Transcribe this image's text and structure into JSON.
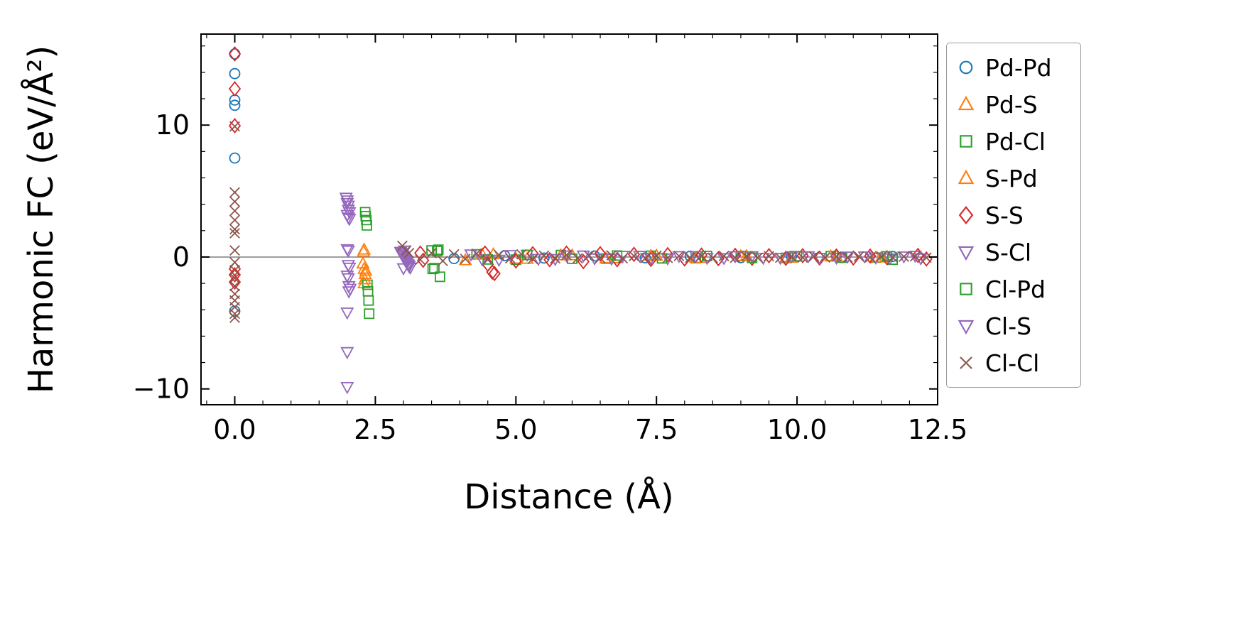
{
  "figure": {
    "background": "#ffffff"
  },
  "chart_data": {
    "type": "scatter",
    "title": "",
    "xlabel": "Distance (Å)",
    "ylabel": "Harmonic FC (eV/Å²)",
    "xlim": [
      -0.6,
      12.5
    ],
    "ylim": [
      -11.2,
      16.9
    ],
    "x_ticks": [
      0.0,
      2.5,
      5.0,
      7.5,
      10.0,
      12.5
    ],
    "x_tick_labels": [
      "0.0",
      "2.5",
      "5.0",
      "7.5",
      "10.0",
      "12.5"
    ],
    "y_ticks": [
      -10,
      0,
      10
    ],
    "y_tick_labels": [
      "−10",
      "0",
      "10"
    ],
    "x_minor_step": 0.5,
    "y_minor_step": 2,
    "grid": false,
    "legend_position": "right-outside",
    "zero_line": {
      "y": 0,
      "color": "#7f7f7f"
    },
    "series": [
      {
        "name": "Pd-Pd",
        "marker": "circle",
        "color": "#1f77b4",
        "points": [
          [
            0,
            15.4
          ],
          [
            0,
            13.9
          ],
          [
            0,
            11.9
          ],
          [
            0,
            11.5
          ],
          [
            0,
            7.5
          ],
          [
            0,
            -4.1
          ],
          [
            3.9,
            -0.12
          ],
          [
            4.8,
            0.1
          ],
          [
            5.5,
            -0.08
          ],
          [
            6.4,
            0.08
          ],
          [
            7.3,
            -0.06
          ],
          [
            8.1,
            0.06
          ],
          [
            9.0,
            -0.05
          ],
          [
            9.9,
            0.05
          ],
          [
            10.8,
            -0.04
          ],
          [
            11.7,
            0.04
          ]
        ]
      },
      {
        "name": "Pd-S",
        "marker": "triangle-up",
        "color": "#ff7f0e",
        "points": [
          [
            2.3,
            0.55
          ],
          [
            2.28,
            -0.5
          ],
          [
            2.32,
            -1.3
          ],
          [
            2.3,
            -2.0
          ],
          [
            4.1,
            -0.25
          ],
          [
            4.6,
            0.2
          ],
          [
            5.2,
            -0.15
          ],
          [
            6.0,
            0.12
          ],
          [
            6.8,
            -0.1
          ],
          [
            7.5,
            0.1
          ],
          [
            8.3,
            -0.08
          ],
          [
            9.1,
            0.07
          ],
          [
            9.9,
            -0.06
          ],
          [
            10.7,
            0.05
          ],
          [
            11.5,
            -0.05
          ]
        ]
      },
      {
        "name": "Pd-Cl",
        "marker": "square",
        "color": "#2ca02c",
        "points": [
          [
            2.32,
            3.4
          ],
          [
            2.34,
            2.8
          ],
          [
            2.36,
            -2.1
          ],
          [
            2.38,
            -3.3
          ],
          [
            3.5,
            0.5
          ],
          [
            3.55,
            -0.85
          ],
          [
            3.62,
            0.55
          ],
          [
            4.3,
            0.2
          ],
          [
            5.0,
            -0.2
          ],
          [
            5.8,
            0.15
          ],
          [
            6.6,
            -0.12
          ],
          [
            7.4,
            0.1
          ],
          [
            8.2,
            -0.09
          ],
          [
            9.0,
            0.08
          ],
          [
            9.8,
            -0.07
          ],
          [
            10.6,
            0.06
          ],
          [
            11.4,
            -0.05
          ],
          [
            11.7,
            -0.2
          ]
        ]
      },
      {
        "name": "S-Pd",
        "marker": "triangle-up",
        "color": "#ff7f0e",
        "points": [
          [
            2.3,
            -0.9
          ],
          [
            2.31,
            -1.7
          ],
          [
            2.29,
            0.4
          ],
          [
            2.33,
            -1.05
          ],
          [
            4.4,
            0.18
          ],
          [
            5.0,
            -0.14
          ],
          [
            5.8,
            0.12
          ],
          [
            6.6,
            -0.1
          ],
          [
            7.4,
            0.09
          ],
          [
            8.2,
            -0.08
          ],
          [
            9.0,
            0.06
          ],
          [
            9.8,
            -0.05
          ],
          [
            10.6,
            0.05
          ],
          [
            11.4,
            -0.04
          ]
        ]
      },
      {
        "name": "S-S",
        "marker": "diamond",
        "color": "#d62728",
        "points": [
          [
            0,
            15.4
          ],
          [
            0,
            12.75
          ],
          [
            0,
            9.95
          ],
          [
            0,
            -0.9
          ],
          [
            0,
            -1.35
          ],
          [
            0,
            -1.9
          ],
          [
            3.3,
            0.3
          ],
          [
            3.35,
            -0.25
          ],
          [
            4.45,
            0.3
          ],
          [
            4.5,
            -0.55
          ],
          [
            4.58,
            -1.15
          ],
          [
            4.62,
            -1.25
          ],
          [
            5.0,
            -0.3
          ],
          [
            5.3,
            0.25
          ],
          [
            5.6,
            -0.2
          ],
          [
            5.9,
            0.3
          ],
          [
            6.2,
            -0.35
          ],
          [
            6.5,
            0.25
          ],
          [
            6.8,
            -0.2
          ],
          [
            7.1,
            0.2
          ],
          [
            7.4,
            -0.18
          ],
          [
            7.7,
            0.18
          ],
          [
            8.0,
            -0.15
          ],
          [
            8.3,
            0.15
          ],
          [
            8.6,
            -0.12
          ],
          [
            8.9,
            0.12
          ],
          [
            9.2,
            -0.1
          ],
          [
            9.5,
            0.1
          ],
          [
            9.8,
            -0.1
          ],
          [
            10.1,
            0.1
          ],
          [
            10.4,
            -0.08
          ],
          [
            10.7,
            0.08
          ],
          [
            11.0,
            -0.08
          ],
          [
            11.3,
            0.07
          ],
          [
            11.6,
            -0.06
          ],
          [
            12.15,
            0.12
          ],
          [
            12.3,
            -0.15
          ]
        ]
      },
      {
        "name": "S-Cl",
        "marker": "triangle-down",
        "color": "#9467bd",
        "points": [
          [
            1.98,
            4.5
          ],
          [
            2.0,
            4.1
          ],
          [
            2.02,
            3.6
          ],
          [
            2.0,
            3.2
          ],
          [
            2.04,
            2.9
          ],
          [
            2.0,
            0.6
          ],
          [
            2.02,
            -0.6
          ],
          [
            2.0,
            -1.4
          ],
          [
            2.03,
            -2.2
          ],
          [
            2.0,
            -4.2
          ],
          [
            2.0,
            -7.2
          ],
          [
            2.95,
            0.4
          ],
          [
            2.98,
            0.2
          ],
          [
            3.0,
            0.05
          ],
          [
            3.02,
            -0.15
          ],
          [
            3.05,
            -0.35
          ],
          [
            3.08,
            -0.55
          ],
          [
            3.1,
            -0.7
          ],
          [
            3.0,
            -0.85
          ],
          [
            4.2,
            0.2
          ],
          [
            4.7,
            -0.2
          ],
          [
            5.2,
            0.18
          ],
          [
            5.7,
            -0.15
          ],
          [
            6.2,
            0.12
          ],
          [
            6.7,
            -0.12
          ],
          [
            7.2,
            0.1
          ],
          [
            7.7,
            -0.1
          ],
          [
            8.2,
            0.08
          ],
          [
            8.7,
            -0.08
          ],
          [
            9.2,
            0.07
          ],
          [
            9.7,
            -0.06
          ],
          [
            10.2,
            0.06
          ],
          [
            10.7,
            -0.05
          ],
          [
            11.2,
            0.05
          ],
          [
            11.65,
            -0.1
          ],
          [
            12.1,
            0.1
          ]
        ]
      },
      {
        "name": "Cl-Pd",
        "marker": "square",
        "color": "#2ca02c",
        "points": [
          [
            2.33,
            3.1
          ],
          [
            2.35,
            2.4
          ],
          [
            2.37,
            -2.6
          ],
          [
            2.39,
            -4.3
          ],
          [
            3.52,
            -0.9
          ],
          [
            3.65,
            -1.5
          ],
          [
            3.6,
            0.45
          ],
          [
            4.5,
            -0.18
          ],
          [
            5.2,
            0.16
          ],
          [
            6.0,
            -0.13
          ],
          [
            6.8,
            0.11
          ],
          [
            7.6,
            -0.1
          ],
          [
            8.4,
            0.08
          ],
          [
            9.2,
            -0.07
          ],
          [
            10.0,
            0.06
          ],
          [
            10.8,
            -0.05
          ],
          [
            11.6,
            0.05
          ]
        ]
      },
      {
        "name": "Cl-S",
        "marker": "triangle-down",
        "color": "#9467bd",
        "points": [
          [
            2.0,
            4.3
          ],
          [
            2.02,
            3.9
          ],
          [
            2.04,
            3.4
          ],
          [
            2.02,
            3.0
          ],
          [
            2.02,
            0.5
          ],
          [
            2.04,
            -0.8
          ],
          [
            2.02,
            -1.6
          ],
          [
            2.05,
            -2.4
          ],
          [
            2.03,
            -2.6
          ],
          [
            2.0,
            -9.85
          ],
          [
            2.96,
            0.3
          ],
          [
            2.99,
            0.1
          ],
          [
            3.01,
            -0.05
          ],
          [
            3.04,
            -0.25
          ],
          [
            3.06,
            -0.45
          ],
          [
            3.09,
            -0.6
          ],
          [
            3.12,
            -0.8
          ],
          [
            3.02,
            0.5
          ],
          [
            4.4,
            -0.18
          ],
          [
            4.9,
            0.16
          ],
          [
            5.4,
            -0.14
          ],
          [
            5.9,
            0.12
          ],
          [
            6.4,
            -0.1
          ],
          [
            6.9,
            0.1
          ],
          [
            7.4,
            -0.09
          ],
          [
            7.9,
            0.08
          ],
          [
            8.4,
            -0.07
          ],
          [
            8.9,
            0.07
          ],
          [
            9.4,
            -0.06
          ],
          [
            9.9,
            0.05
          ],
          [
            10.4,
            -0.05
          ],
          [
            10.9,
            0.04
          ],
          [
            11.4,
            -0.04
          ],
          [
            11.9,
            0.05
          ],
          [
            12.2,
            -0.1
          ]
        ]
      },
      {
        "name": "Cl-Cl",
        "marker": "x",
        "color": "#8c564b",
        "points": [
          [
            0,
            9.9
          ],
          [
            0,
            4.9
          ],
          [
            0,
            4.2
          ],
          [
            0,
            3.5
          ],
          [
            0,
            2.8
          ],
          [
            0,
            2.1
          ],
          [
            0,
            1.8
          ],
          [
            0,
            0.5
          ],
          [
            0,
            -0.4
          ],
          [
            0,
            -1.0
          ],
          [
            0,
            -1.6
          ],
          [
            0,
            -2.2
          ],
          [
            0,
            -2.8
          ],
          [
            0,
            -3.3
          ],
          [
            0,
            -3.8
          ],
          [
            0,
            -4.3
          ],
          [
            0,
            -4.6
          ],
          [
            2.98,
            0.85
          ],
          [
            3.05,
            0.5
          ],
          [
            3.1,
            0.3
          ],
          [
            3.3,
            -0.2
          ],
          [
            3.5,
            0.3
          ],
          [
            3.7,
            -0.3
          ],
          [
            3.9,
            0.2
          ],
          [
            4.1,
            -0.15
          ],
          [
            4.3,
            0.25
          ],
          [
            4.5,
            -0.2
          ],
          [
            4.7,
            0.15
          ],
          [
            4.9,
            -0.1
          ],
          [
            5.1,
            0.2
          ],
          [
            5.3,
            -0.15
          ],
          [
            5.5,
            0.1
          ],
          [
            5.7,
            -0.1
          ],
          [
            5.9,
            0.15
          ],
          [
            6.1,
            -0.1
          ],
          [
            6.3,
            0.1
          ],
          [
            6.5,
            -0.08
          ],
          [
            6.7,
            0.12
          ],
          [
            6.9,
            -0.1
          ],
          [
            7.1,
            0.08
          ],
          [
            7.3,
            -0.08
          ],
          [
            7.5,
            0.1
          ],
          [
            7.7,
            -0.07
          ],
          [
            7.9,
            0.08
          ],
          [
            8.1,
            -0.06
          ],
          [
            8.3,
            0.08
          ],
          [
            8.5,
            -0.06
          ],
          [
            8.7,
            0.07
          ],
          [
            8.9,
            -0.05
          ],
          [
            9.1,
            0.06
          ],
          [
            9.3,
            -0.05
          ],
          [
            9.5,
            0.06
          ],
          [
            9.7,
            -0.05
          ],
          [
            9.9,
            0.05
          ],
          [
            10.1,
            -0.04
          ],
          [
            10.3,
            0.05
          ],
          [
            10.5,
            -0.04
          ],
          [
            10.7,
            0.04
          ],
          [
            10.9,
            -0.04
          ],
          [
            11.1,
            0.04
          ],
          [
            11.3,
            -0.03
          ],
          [
            11.5,
            0.04
          ],
          [
            11.7,
            -0.03
          ],
          [
            11.9,
            0.03
          ],
          [
            12.1,
            0.05
          ],
          [
            12.3,
            -0.05
          ]
        ]
      }
    ]
  }
}
